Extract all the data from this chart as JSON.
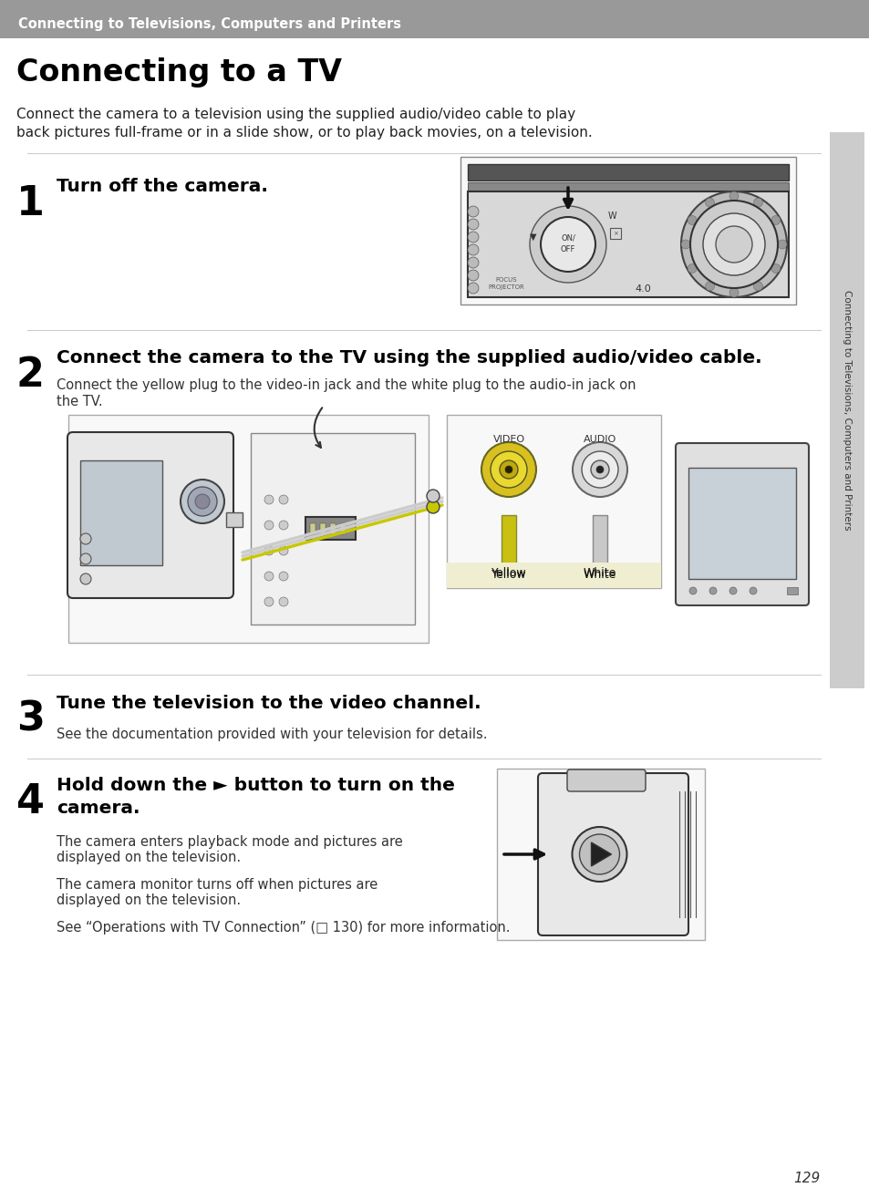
{
  "page_bg": "#ffffff",
  "header_bg": "#999999",
  "header_text": "Connecting to Televisions, Computers and Printers",
  "header_text_color": "#ffffff",
  "title": "Connecting to a TV",
  "title_color": "#000000",
  "intro_line1": "Connect the camera to a television using the supplied audio/video cable to play",
  "intro_line2": "back pictures full-frame or in a slide show, or to play back movies, on a television.",
  "step1_num": "1",
  "step1_text": "Turn off the camera.",
  "step2_num": "2",
  "step2_title": "Connect the camera to the TV using the supplied audio/video cable.",
  "step2_body1": "Connect the yellow plug to the video-in jack and the white plug to the audio-in jack on",
  "step2_body2": "the TV.",
  "step3_num": "3",
  "step3_title": "Tune the television to the video channel.",
  "step3_body": "See the documentation provided with your television for details.",
  "step4_num": "4",
  "step4_title1": "Hold down the ► button to turn on the",
  "step4_title2": "camera.",
  "step4_body1": "The camera enters playback mode and pictures are",
  "step4_body2": "displayed on the television.",
  "step4_body3": "The camera monitor turns off when pictures are",
  "step4_body4": "displayed on the television.",
  "step4_body5": "See “Operations with TV Connection” (□ 130) for more information.",
  "sidebar_text": "Connecting to Televisions, Computers and Printers",
  "page_number": "129",
  "label_yellow": "Yellow",
  "label_white": "White",
  "label_video": "VIDEO",
  "label_audio": "AUDIO",
  "divider_color": "#cccccc",
  "sidebar_bg": "#cccccc",
  "header_line_color": "#ffffff"
}
